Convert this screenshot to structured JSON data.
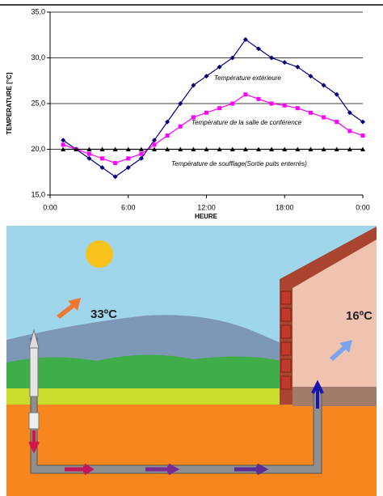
{
  "chart_data": {
    "type": "line",
    "y_label": "TEMPERATURE [°C]",
    "x_label": "HEURE",
    "x": [
      1,
      2,
      3,
      4,
      5,
      6,
      7,
      8,
      9,
      10,
      11,
      12,
      13,
      14,
      15,
      16,
      17,
      18,
      19,
      20,
      21,
      22,
      23,
      24
    ],
    "series": [
      {
        "name": "Température extérieure",
        "color": "#000080",
        "marker": "diamond",
        "values": [
          21,
          20,
          19,
          18,
          17,
          18,
          19,
          21,
          23,
          25,
          27,
          28,
          29,
          30,
          32,
          31,
          30,
          29.5,
          29,
          28,
          27,
          26,
          24,
          23
        ]
      },
      {
        "name": "Température de la salle de conférence",
        "color": "#ff00ff",
        "marker": "square",
        "values": [
          20.5,
          20,
          19.5,
          19,
          18.5,
          19,
          19.5,
          20.5,
          21.5,
          22.5,
          23.5,
          24,
          24.5,
          25,
          26,
          25.5,
          25,
          24.8,
          24.5,
          24,
          23.5,
          23,
          22,
          21.5
        ]
      },
      {
        "name": "Température de soufflage(Sortie puits enterrés)",
        "color": "#000000",
        "marker": "triangle",
        "values": [
          20,
          20,
          20,
          20,
          20,
          20,
          20,
          20,
          20,
          20,
          20,
          20,
          20,
          20,
          20,
          20,
          20,
          20,
          20,
          20,
          20,
          20,
          20,
          20
        ]
      }
    ],
    "xlim": [
      0,
      24
    ],
    "xticks": [
      {
        "value": 0,
        "label": "0:00"
      },
      {
        "value": 6,
        "label": "6:00"
      },
      {
        "value": 12,
        "label": "12:00"
      },
      {
        "value": 18,
        "label": "18:00"
      },
      {
        "value": 24,
        "label": "0:00"
      }
    ],
    "ylim": [
      15,
      35
    ],
    "yticks": [
      {
        "value": 15,
        "label": "15,0"
      },
      {
        "value": 20,
        "label": "20,0"
      },
      {
        "value": 25,
        "label": "25,0"
      },
      {
        "value": 30,
        "label": "30,0"
      },
      {
        "value": 35,
        "label": "35,0"
      }
    ],
    "grid": true
  },
  "illustration": {
    "outside_temp": "33ºC",
    "inside_temp": "16ºC"
  }
}
